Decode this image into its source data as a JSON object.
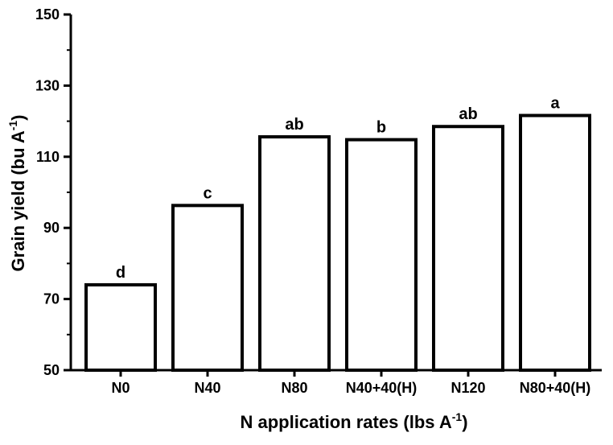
{
  "chart_data": {
    "type": "bar",
    "categories": [
      "N0",
      "N40",
      "N80",
      "N40+40(H)",
      "N120",
      "N80+40(H)"
    ],
    "values": [
      74,
      96.3,
      115.6,
      114.8,
      118.5,
      121.6
    ],
    "data_labels": [
      "d",
      "c",
      "ab",
      "b",
      "ab",
      "a"
    ],
    "ylabel": {
      "main": "Grain yield (bu A",
      "sup": "-1",
      "end": ")"
    },
    "xlabel": {
      "main": "N application rates (lbs A",
      "sup": "-1",
      "end": ")"
    },
    "ylim": [
      50,
      150
    ],
    "yticks": [
      50,
      70,
      90,
      110,
      130,
      150
    ],
    "grid": false,
    "colors": {
      "bar_fill": "#ffffff",
      "bar_stroke": "#000000",
      "axis": "#000000"
    }
  }
}
